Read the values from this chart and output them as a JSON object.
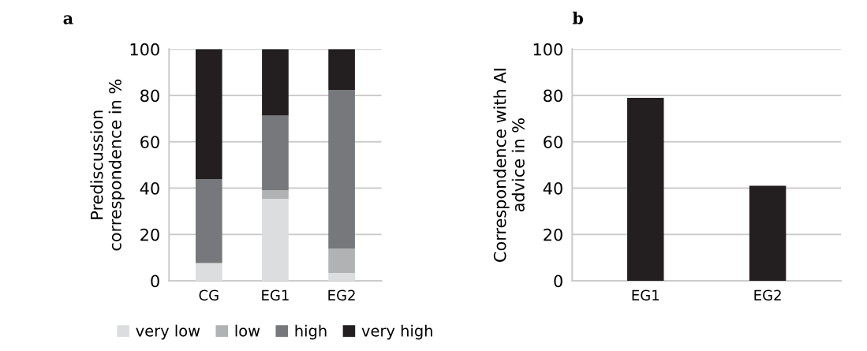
{
  "chart_data": [
    {
      "type": "bar",
      "title": "a",
      "ylabel": "Prediscussion\ncorrespondence in %",
      "categories": [
        "CG",
        "EG1",
        "EG2"
      ],
      "stacked": true,
      "ylim": [
        0,
        100
      ],
      "yticks": [
        0,
        20,
        40,
        60,
        80,
        100
      ],
      "grid": "y",
      "legend": "bottom",
      "series": [
        {
          "name": "very low",
          "color": "#dcdddf",
          "values": [
            7.7,
            35.4,
            3.4
          ]
        },
        {
          "name": "low",
          "color": "#b1b2b4",
          "values": [
            0,
            3.7,
            10.5
          ]
        },
        {
          "name": "high",
          "color": "#77787b",
          "values": [
            36.2,
            32.2,
            68.4
          ]
        },
        {
          "name": "very high",
          "color": "#231f20",
          "values": [
            56.1,
            28.7,
            17.7
          ]
        }
      ]
    },
    {
      "type": "bar",
      "title": "b",
      "ylabel": "Correspondence with AI\nadvice in %",
      "categories": [
        "EG1",
        "EG2"
      ],
      "ylim": [
        0,
        100
      ],
      "yticks": [
        0,
        20,
        40,
        60,
        80,
        100
      ],
      "grid": "y",
      "series": [
        {
          "color": "#231f20",
          "values": [
            79,
            41
          ]
        }
      ]
    }
  ]
}
